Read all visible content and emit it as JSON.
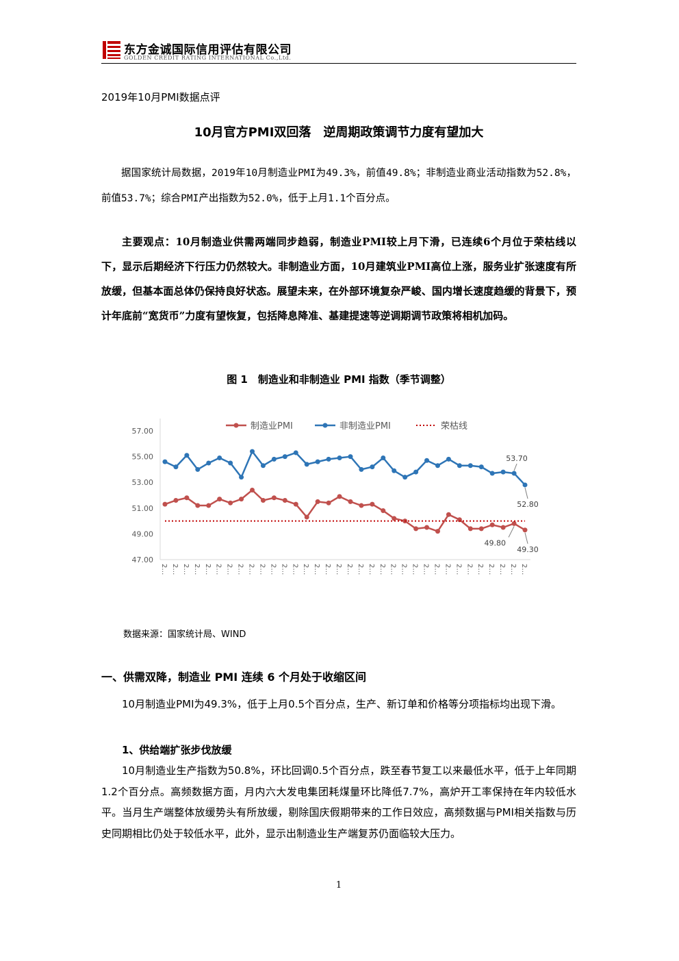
{
  "header": {
    "company_cn": "东方金诚国际信用评估有限公司",
    "company_en": "GOLDEN CREDIT RATING INTERNATIONAL Co.,Ltd."
  },
  "doc_label": "2019年10月PMI数据点评",
  "title": "10月官方PMI双回落　逆周期政策调节力度有望加大",
  "intro": "据国家统计局数据，2019年10月制造业PMI为49.3%，前值49.8%；非制造业商业活动指数为52.8%，前值53.7%；综合PMI产出指数为52.0%，低于上月1.1个百分点。",
  "key_points": {
    "label": "主要观点：",
    "text": "10月制造业供需两端同步趋弱，制造业PMI较上月下滑，已连续6个月位于荣枯线以下，显示后期经济下行压力仍然较大。非制造业方面，10月建筑业PMI高位上涨，服务业扩张速度有所放缓，但基本面总体仍保持良好状态。展望未来，在外部环境复杂严峻、国内增长速度趋缓的背景下，预计年底前“宽货币”力度有望恢复，包括降息降准、基建提速等逆调期调节政策将相机加码。"
  },
  "figure": {
    "caption": "图 1　制造业和非制造业 PMI 指数（季节调整）",
    "source": "数据来源：国家统计局、WIND"
  },
  "chart_data": {
    "type": "line",
    "categories": [
      "2…",
      "2…",
      "2…",
      "2…",
      "2…",
      "2…",
      "2…",
      "2…",
      "2…",
      "2…",
      "2…",
      "2…",
      "2…",
      "2…",
      "2…",
      "2…",
      "2…",
      "2…",
      "2…",
      "2…",
      "2…",
      "2…",
      "2…",
      "2…",
      "2…",
      "2…",
      "2…",
      "2…",
      "2…",
      "2…",
      "2…",
      "2…",
      "2…",
      "2…"
    ],
    "series": [
      {
        "name": "制造业PMI",
        "color": "#c0504d",
        "marker": true,
        "values": [
          51.3,
          51.6,
          51.8,
          51.2,
          51.2,
          51.7,
          51.4,
          51.7,
          52.4,
          51.6,
          51.8,
          51.6,
          51.3,
          50.3,
          51.5,
          51.4,
          51.9,
          51.5,
          51.2,
          51.3,
          50.8,
          50.2,
          50.0,
          49.4,
          49.5,
          49.2,
          50.5,
          50.1,
          49.4,
          49.4,
          49.7,
          49.5,
          49.8,
          49.3
        ],
        "value_labels": [
          null,
          null,
          null,
          null,
          null,
          null,
          null,
          null,
          null,
          null,
          null,
          null,
          null,
          null,
          null,
          null,
          null,
          null,
          null,
          null,
          null,
          null,
          null,
          null,
          null,
          null,
          null,
          null,
          null,
          null,
          null,
          null,
          "49.80",
          "49.30"
        ]
      },
      {
        "name": "非制造业PMI",
        "color": "#2e75b6",
        "marker": true,
        "values": [
          54.6,
          54.2,
          55.1,
          54.0,
          54.5,
          54.9,
          54.5,
          53.4,
          55.4,
          54.3,
          54.8,
          55.0,
          55.3,
          54.4,
          54.6,
          54.8,
          54.9,
          55.0,
          54.0,
          54.2,
          54.9,
          53.9,
          53.4,
          53.8,
          54.7,
          54.3,
          54.8,
          54.3,
          54.3,
          54.2,
          53.7,
          53.8,
          53.7,
          52.8
        ],
        "value_labels": [
          null,
          null,
          null,
          null,
          null,
          null,
          null,
          null,
          null,
          null,
          null,
          null,
          null,
          null,
          null,
          null,
          null,
          null,
          null,
          null,
          null,
          null,
          null,
          null,
          null,
          null,
          null,
          null,
          null,
          null,
          null,
          null,
          "53.70",
          "52.80"
        ]
      },
      {
        "name": "荣枯线",
        "color": "#c00000",
        "marker": false,
        "line_style": "dotted",
        "values": [
          50,
          50,
          50,
          50,
          50,
          50,
          50,
          50,
          50,
          50,
          50,
          50,
          50,
          50,
          50,
          50,
          50,
          50,
          50,
          50,
          50,
          50,
          50,
          50,
          50,
          50,
          50,
          50,
          50,
          50,
          50,
          50,
          50,
          50
        ]
      }
    ],
    "ylim": [
      47,
      57
    ],
    "yticks": [
      {
        "value": 47,
        "label": "47.00"
      },
      {
        "value": 49,
        "label": "49.00"
      },
      {
        "value": 51,
        "label": "51.00"
      },
      {
        "value": 53,
        "label": "53.00"
      },
      {
        "value": 55,
        "label": "55.00"
      },
      {
        "value": 57,
        "label": "57.00"
      }
    ],
    "grid": false,
    "legend": "top"
  },
  "section1": {
    "heading": "一、供需双降，制造业 PMI 连续 6 个月处于收缩区间",
    "paragraph": "10月制造业PMI为49.3%，低于上月0.5个百分点，生产、新订单和价格等分项指标均出现下滑。"
  },
  "subsection1": {
    "heading": "1、供给端扩张步伐放缓",
    "paragraph": "10月制造业生产指数为50.8%，环比回调0.5个百分点，跌至春节复工以来最低水平，低于上年同期1.2个百分点。高频数据方面，月内六大发电集团耗煤量环比降低7.7%，高炉开工率保持在年内较低水平。当月生产端整体放缓势头有所放缓，剔除国庆假期带来的工作日效应，高频数据与PMI相关指数与历史同期相比仍处于较低水平，此外，显示出制造业生产端复苏仍面临较大压力。"
  },
  "page_number": "1"
}
